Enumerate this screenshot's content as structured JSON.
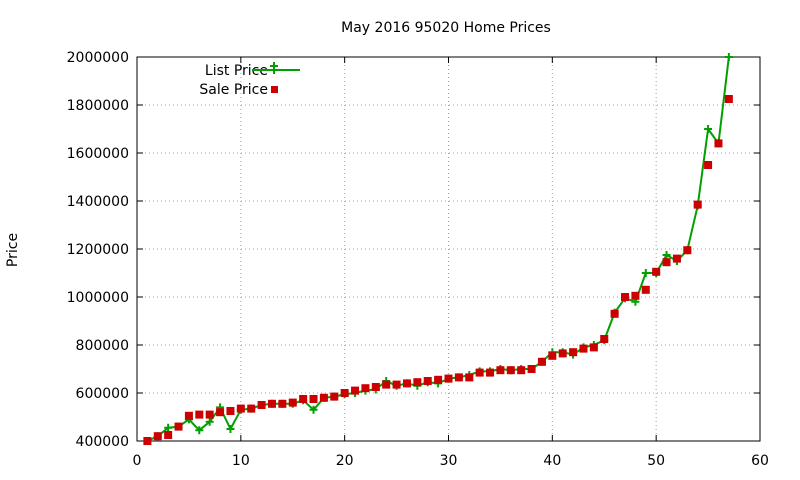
{
  "chart_data": {
    "type": "line",
    "title": "May 2016 95020 Home Prices",
    "xlabel": "",
    "ylabel": "Price",
    "xlim": [
      0,
      60
    ],
    "ylim": [
      400000,
      2000000
    ],
    "x_ticks": [
      0,
      10,
      20,
      30,
      40,
      50,
      60
    ],
    "y_ticks": [
      400000,
      600000,
      800000,
      1000000,
      1200000,
      1400000,
      1600000,
      1800000,
      2000000
    ],
    "grid": true,
    "legend_position": "top-left",
    "x": [
      1,
      2,
      3,
      4,
      5,
      6,
      7,
      8,
      9,
      10,
      11,
      12,
      13,
      14,
      15,
      16,
      17,
      18,
      19,
      20,
      21,
      22,
      23,
      24,
      25,
      26,
      27,
      28,
      29,
      30,
      31,
      32,
      33,
      34,
      35,
      36,
      37,
      38,
      39,
      40,
      41,
      42,
      43,
      44,
      45,
      46,
      47,
      48,
      49,
      50,
      51,
      52,
      53,
      54,
      55,
      56,
      57
    ],
    "series": [
      {
        "name": "List Price",
        "style": "linespoints",
        "marker": "plus",
        "color": "#00a000",
        "values": [
          400000,
          420000,
          455000,
          460000,
          490000,
          445000,
          480000,
          540000,
          450000,
          530000,
          535000,
          550000,
          555000,
          555000,
          555000,
          570000,
          530000,
          580000,
          585000,
          595000,
          600000,
          610000,
          615000,
          650000,
          630000,
          640000,
          630000,
          645000,
          640000,
          660000,
          665000,
          675000,
          690000,
          690000,
          700000,
          695000,
          700000,
          700000,
          730000,
          770000,
          770000,
          760000,
          790000,
          800000,
          820000,
          935000,
          995000,
          980000,
          1100000,
          1100000,
          1175000,
          1150000,
          1195000,
          1380000,
          1700000,
          1640000,
          2000000
        ]
      },
      {
        "name": "Sale Price",
        "style": "points",
        "marker": "square",
        "color": "#cc0000",
        "values": [
          400000,
          420000,
          425000,
          460000,
          505000,
          510000,
          510000,
          520000,
          525000,
          535000,
          535000,
          550000,
          555000,
          555000,
          560000,
          575000,
          575000,
          580000,
          585000,
          600000,
          610000,
          620000,
          625000,
          635000,
          635000,
          640000,
          645000,
          650000,
          655000,
          660000,
          665000,
          665000,
          685000,
          685000,
          695000,
          695000,
          695000,
          700000,
          730000,
          755000,
          765000,
          770000,
          785000,
          790000,
          825000,
          930000,
          1000000,
          1005000,
          1030000,
          1105000,
          1145000,
          1160000,
          1195000,
          1385000,
          1550000,
          1640000,
          1825000
        ]
      }
    ]
  }
}
